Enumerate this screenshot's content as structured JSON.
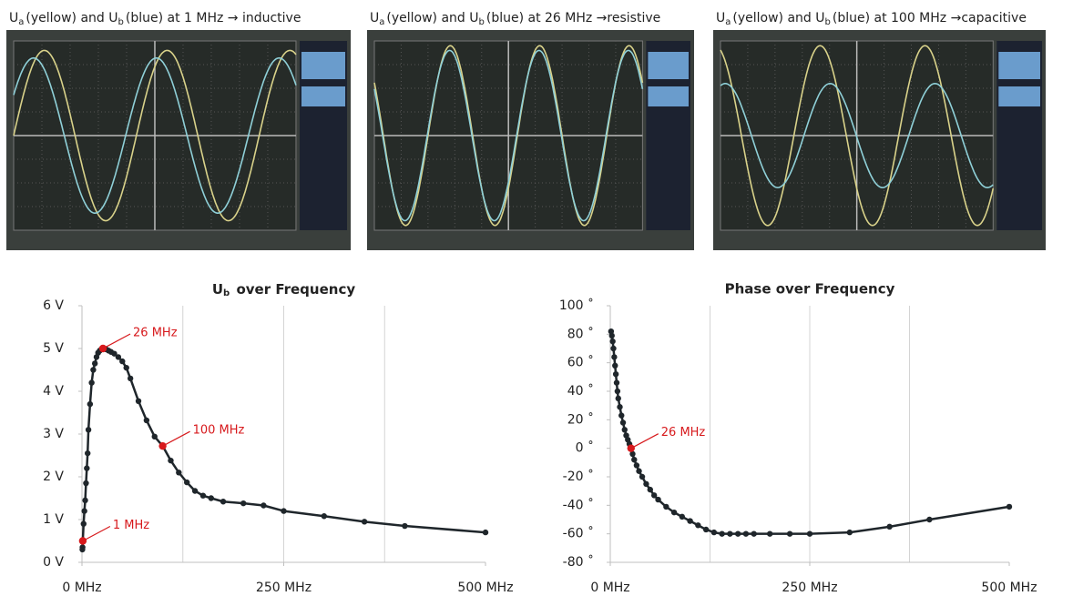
{
  "photos": [
    {
      "caption": [
        "U",
        "a",
        "(yellow) and U",
        "b",
        "(blue) at 1 MHz → inductive"
      ]
    },
    {
      "caption": [
        "U",
        "a",
        "(yellow) and U",
        "b",
        "(blue) at 26 MHz →resistive"
      ]
    },
    {
      "caption": [
        "U",
        "a",
        "(yellow) and U",
        "b",
        "(blue) at 100 MHz →capacitive"
      ]
    }
  ],
  "chart_data": [
    {
      "type": "line",
      "title": [
        "U",
        "b",
        " over Frequency"
      ],
      "x": [
        0.5,
        0.7,
        1,
        2,
        3,
        4,
        5,
        6,
        7,
        8,
        10,
        12,
        14,
        16,
        18,
        20,
        22,
        24,
        26,
        28,
        30,
        33,
        36,
        40,
        45,
        50,
        55,
        60,
        70,
        80,
        90,
        100,
        110,
        120,
        130,
        140,
        150,
        160,
        175,
        200,
        225,
        250,
        300,
        350,
        400,
        500
      ],
      "series": [
        {
          "color": "#1f262b",
          "values": [
            0.3,
            0.35,
            0.5,
            0.9,
            1.2,
            1.45,
            1.85,
            2.2,
            2.55,
            3.1,
            3.7,
            4.2,
            4.5,
            4.65,
            4.8,
            4.9,
            4.95,
            4.98,
            5.0,
            5.0,
            4.98,
            4.95,
            4.92,
            4.88,
            4.8,
            4.7,
            4.55,
            4.3,
            3.77,
            3.32,
            2.94,
            2.72,
            2.38,
            2.1,
            1.87,
            1.67,
            1.56,
            1.5,
            1.42,
            1.38,
            1.33,
            1.2,
            1.08,
            0.95,
            0.85,
            0.7
          ]
        }
      ],
      "xlim": [
        0,
        500
      ],
      "xticks": [
        {
          "value": 0,
          "label": "0 MHz"
        },
        {
          "value": 250,
          "label": "250 MHz"
        },
        {
          "value": 500,
          "label": "500 MHz"
        }
      ],
      "xgrid": [
        125,
        250,
        375
      ],
      "ylim": [
        0,
        6
      ],
      "yticks": [
        {
          "value": 0,
          "label": "0 V"
        },
        {
          "value": 1,
          "label": "1 V"
        },
        {
          "value": 2,
          "label": "2 V"
        },
        {
          "value": 3,
          "label": "3 V"
        },
        {
          "value": 4,
          "label": "4 V"
        },
        {
          "value": 5,
          "label": "5 V"
        },
        {
          "value": 6,
          "label": "6 V"
        }
      ],
      "annotation_color": "#d7191c",
      "annotations": [
        {
          "text": "1 MHz",
          "x": 1,
          "y": 0.5
        },
        {
          "text": "26 MHz",
          "x": 26,
          "y": 5.0
        },
        {
          "text": "100 MHz",
          "x": 100,
          "y": 2.72
        }
      ]
    },
    {
      "type": "line",
      "title": "Phase over Frequency",
      "x": [
        1,
        2,
        3,
        4,
        5,
        6,
        7,
        8,
        9,
        10,
        12,
        14,
        16,
        18,
        20,
        22,
        24,
        26,
        28,
        30,
        33,
        36,
        40,
        45,
        50,
        55,
        60,
        70,
        80,
        90,
        100,
        110,
        120,
        130,
        140,
        150,
        160,
        170,
        180,
        200,
        225,
        250,
        300,
        350,
        400,
        500
      ],
      "series": [
        {
          "color": "#1f262b",
          "values": [
            82,
            79,
            75,
            70,
            64,
            58,
            52,
            46,
            40,
            35,
            29,
            23,
            18,
            13,
            9,
            6,
            3,
            0,
            -4,
            -8,
            -12,
            -16,
            -20,
            -25,
            -29,
            -33,
            -36,
            -41,
            -45,
            -48,
            -51,
            -54,
            -57,
            -59,
            -60,
            -60,
            -60,
            -60,
            -60,
            -60,
            -60,
            -60,
            -59,
            -55,
            -50,
            -41
          ]
        }
      ],
      "xlim": [
        0,
        500
      ],
      "xticks": [
        {
          "value": 0,
          "label": "0 MHz"
        },
        {
          "value": 250,
          "label": "250 MHz"
        },
        {
          "value": 500,
          "label": "500 MHz"
        }
      ],
      "xgrid": [
        125,
        250,
        375
      ],
      "ylim": [
        -80,
        100
      ],
      "yticks": [
        {
          "value": -80,
          "label": "-80 ˚"
        },
        {
          "value": -60,
          "label": "-60 ˚"
        },
        {
          "value": -40,
          "label": "-40 ˚"
        },
        {
          "value": -20,
          "label": "-20 ˚"
        },
        {
          "value": 0,
          "label": "0 ˚"
        },
        {
          "value": 20,
          "label": "20 ˚"
        },
        {
          "value": 40,
          "label": "40 ˚"
        },
        {
          "value": 60,
          "label": "60 ˚"
        },
        {
          "value": 80,
          "label": "80 ˚"
        },
        {
          "value": 100,
          "label": "100 ˚"
        }
      ],
      "annotation_color": "#d7191c",
      "annotations": [
        {
          "text": "26 MHz",
          "x": 26,
          "y": 0
        }
      ]
    }
  ]
}
